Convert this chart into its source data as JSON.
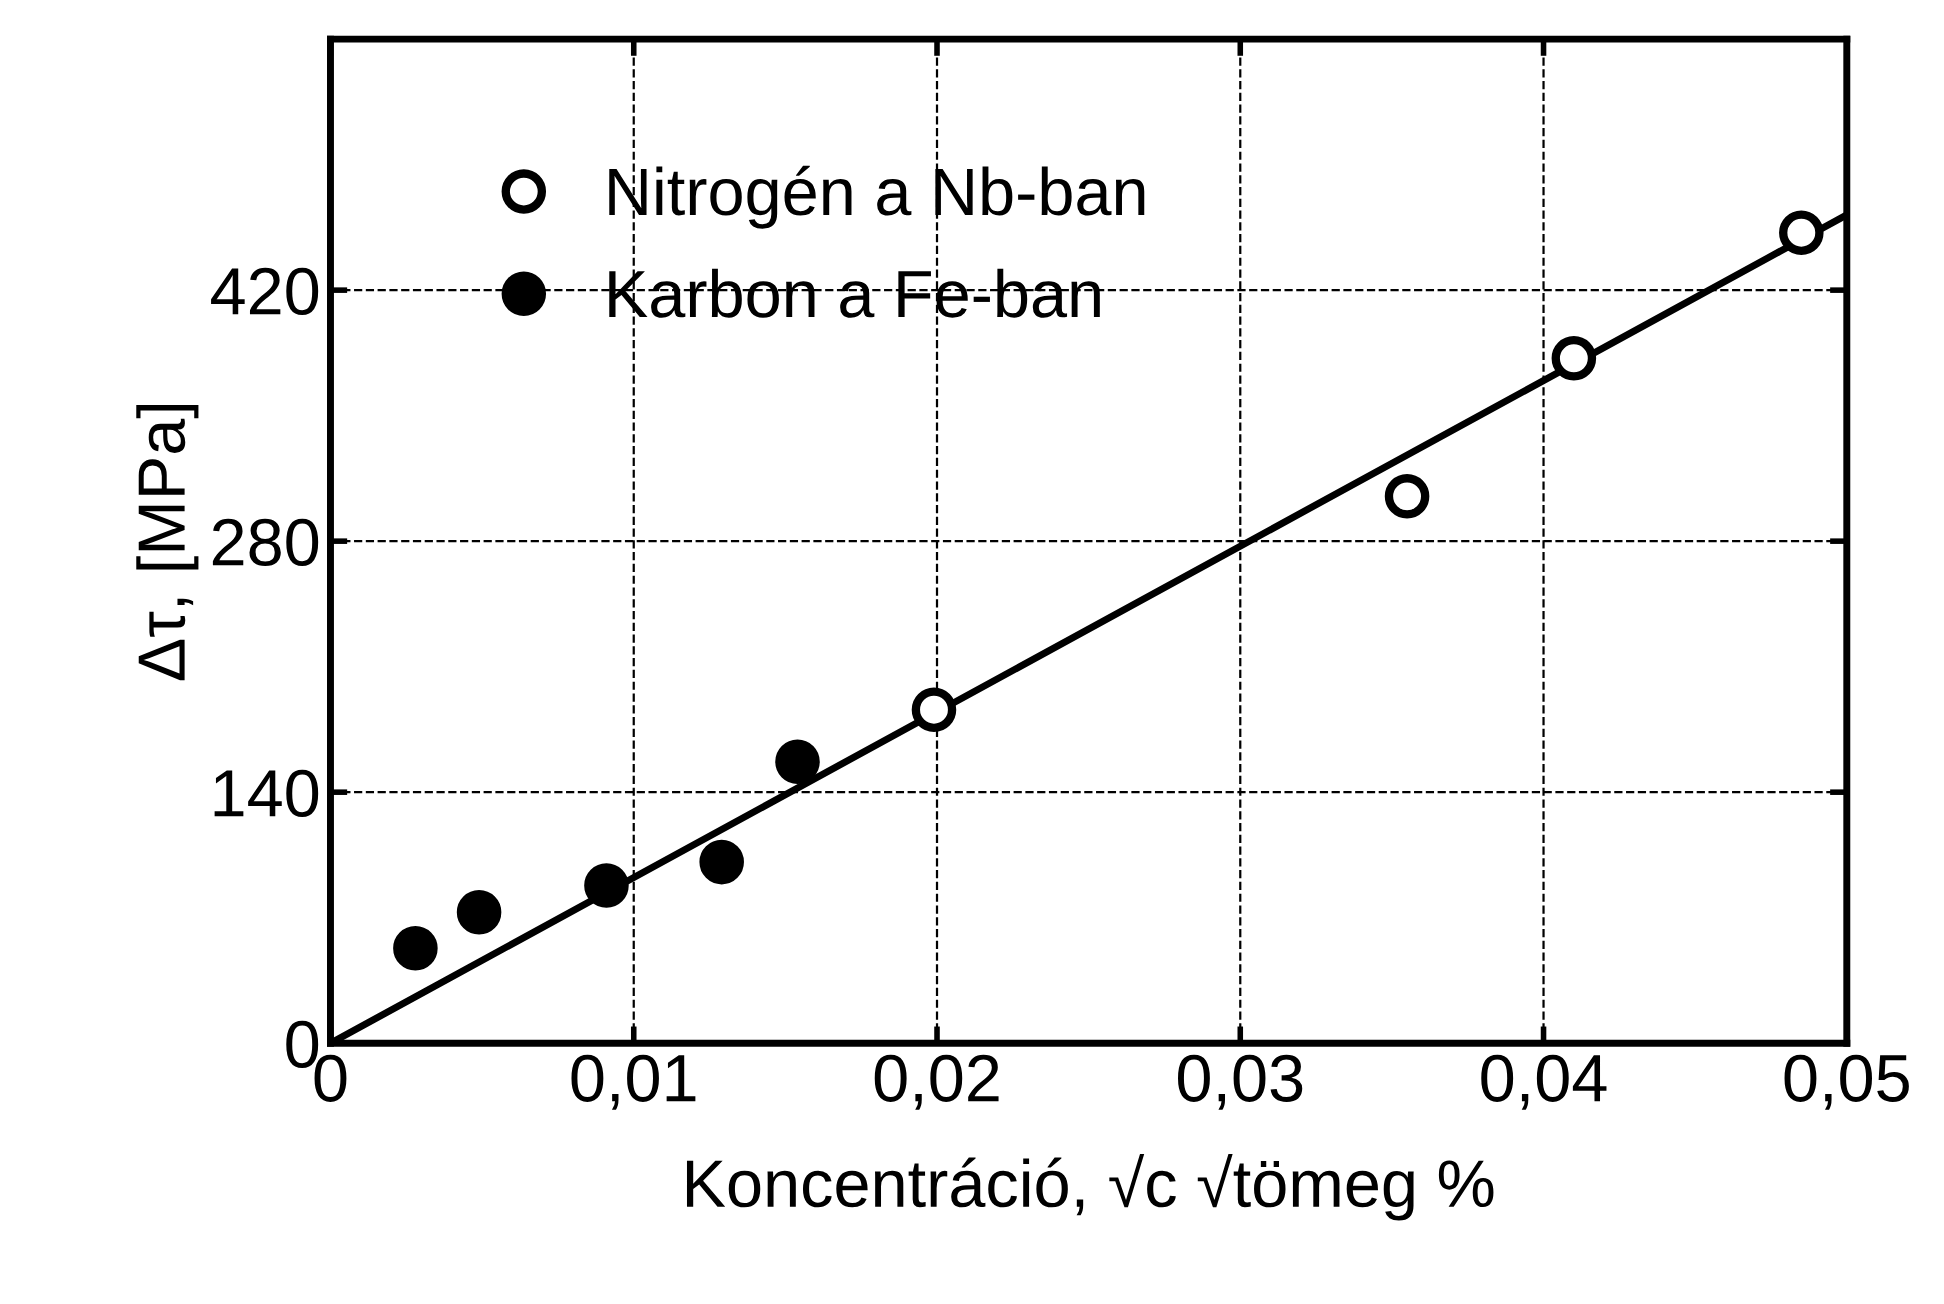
{
  "chart_data": {
    "type": "scatter",
    "xlabel": "Koncentráció, √c √tömeg %",
    "ylabel": "Δτ, [MPa]",
    "series": [
      {
        "name": "Nitrogén a Nb-ban",
        "color": "#ffffff",
        "marker": "circle",
        "x": [
          0.0199,
          0.0355,
          0.041,
          0.0485
        ],
        "values": [
          186,
          305,
          382,
          452
        ]
      },
      {
        "name": "Karbon a Fe-ban",
        "color": "#000000",
        "marker": "circle",
        "x": [
          0.0028,
          0.0049,
          0.0091,
          0.0129,
          0.0154
        ],
        "values": [
          53,
          73,
          88,
          101,
          157
        ]
      },
      {
        "type": "line",
        "color": "#000000",
        "marker": "none",
        "x": [
          0,
          0.05
        ],
        "values": [
          0,
          462
        ]
      }
    ],
    "xlim": [
      0,
      0.05
    ],
    "ylim": [
      0,
      560
    ],
    "xticks": [
      0,
      {
        "value": 0.01,
        "label": "0,01"
      },
      {
        "value": 0.02,
        "label": "0,02"
      },
      {
        "value": 0.03,
        "label": "0,03"
      },
      {
        "value": 0.04,
        "label": "0,04"
      },
      {
        "value": 0.05,
        "label": "0,05"
      }
    ],
    "yticks": [
      0,
      140,
      280,
      420
    ],
    "grid": true,
    "legend": "top left"
  }
}
